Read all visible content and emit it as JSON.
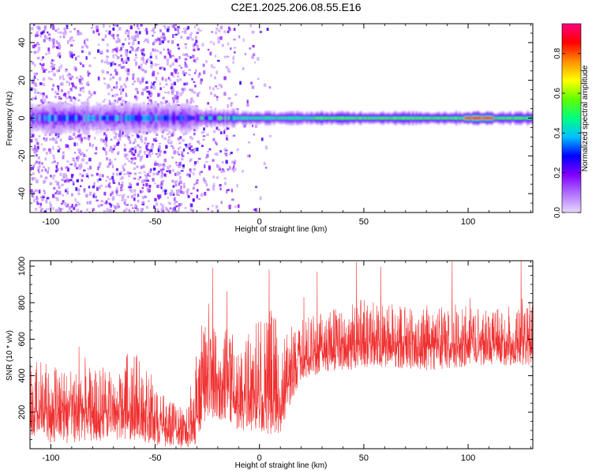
{
  "title": "C2E1.2025.206.08.55.E16",
  "colors": {
    "snr_line": "#f03030",
    "axis": "#000000",
    "spectrogram_background": "#ffffff"
  },
  "chart_data": [
    {
      "type": "heatmap",
      "xlabel": "Height of straight line (km)",
      "ylabel": "Frequency (Hz)",
      "xlim": [
        -110,
        131
      ],
      "ylim": [
        -50,
        50
      ],
      "x_ticks": [
        -100,
        -50,
        0,
        50,
        100
      ],
      "x_tick_labels": [
        "-100",
        "-50",
        "0",
        "50",
        "100"
      ],
      "y_ticks": [
        -40,
        -20,
        0,
        20,
        40
      ],
      "y_tick_labels": [
        "-40",
        "-20",
        "0",
        "20",
        "40"
      ],
      "grid": false,
      "colorbar": {
        "label": "Normalized spectral amplitude",
        "range": [
          0,
          0.95
        ],
        "ticks": [
          0,
          0.2,
          0.4,
          0.6,
          0.8
        ],
        "tick_labels": [
          "0.0",
          "0.2",
          "0.4",
          "0.6",
          "0.8"
        ],
        "colormap": [
          "#e8d8ff",
          "#b070ff",
          "#8000ff",
          "#0000ff",
          "#00c0ff",
          "#00ff80",
          "#60ff00",
          "#ffff00",
          "#ff9000",
          "#ff0000",
          "#ff0080"
        ]
      },
      "dominant_band_center_hz": 0,
      "band_segments": [
        {
          "x_range": [
            -110,
            -30
          ],
          "half_width_hz": 7,
          "amplitude": 0.25,
          "scatter": "strong"
        },
        {
          "x_range": [
            -30,
            -12
          ],
          "half_width_hz": 4,
          "amplitude": 0.35,
          "scatter": "moderate"
        },
        {
          "x_range": [
            -12,
            25
          ],
          "half_width_hz": 3,
          "amplitude": 0.45,
          "scatter": "weak"
        },
        {
          "x_range": [
            25,
            98
          ],
          "half_width_hz": 3,
          "amplitude": 0.55,
          "scatter": "none"
        },
        {
          "x_range": [
            98,
            112
          ],
          "half_width_hz": 3,
          "amplitude": 0.9,
          "scatter": "none"
        },
        {
          "x_range": [
            112,
            131
          ],
          "half_width_hz": 3,
          "amplitude": 0.55,
          "scatter": "none"
        }
      ]
    },
    {
      "type": "line",
      "xlabel": "Height of straight line (km)",
      "ylabel": "SNR (10 * v/v)",
      "xlim": [
        -110,
        131
      ],
      "ylim": [
        0,
        1030
      ],
      "x_ticks": [
        -100,
        -50,
        0,
        50,
        100
      ],
      "x_tick_labels": [
        "-100",
        "-50",
        "0",
        "50",
        "100"
      ],
      "y_ticks": [
        200,
        400,
        600,
        800,
        1000
      ],
      "y_tick_labels": [
        "200",
        "400",
        "600",
        "800",
        "1000"
      ],
      "grid": false,
      "series": [
        {
          "x": [
            -110,
            -100,
            -90,
            -80,
            -70,
            -60,
            -50,
            -40,
            -35,
            -30,
            -28,
            -25,
            -20,
            -15,
            -10,
            -5,
            0,
            5,
            10,
            15,
            20,
            30,
            40,
            50,
            60,
            70,
            80,
            90,
            100,
            110,
            120,
            131
          ],
          "mean": [
            200,
            190,
            185,
            190,
            195,
            215,
            150,
            100,
            95,
            180,
            250,
            420,
            330,
            380,
            250,
            320,
            290,
            300,
            200,
            400,
            480,
            530,
            560,
            570,
            575,
            575,
            570,
            570,
            580,
            590,
            585,
            590
          ],
          "low": [
            60,
            30,
            30,
            40,
            50,
            50,
            20,
            5,
            5,
            30,
            80,
            180,
            140,
            150,
            70,
            100,
            100,
            80,
            40,
            250,
            370,
            420,
            430,
            440,
            450,
            440,
            430,
            440,
            450,
            460,
            450,
            460
          ],
          "high": [
            480,
            480,
            420,
            450,
            440,
            560,
            330,
            240,
            220,
            540,
            700,
            870,
            620,
            700,
            600,
            700,
            720,
            800,
            650,
            700,
            720,
            760,
            790,
            820,
            800,
            780,
            790,
            800,
            780,
            770,
            780,
            860
          ]
        }
      ]
    }
  ]
}
